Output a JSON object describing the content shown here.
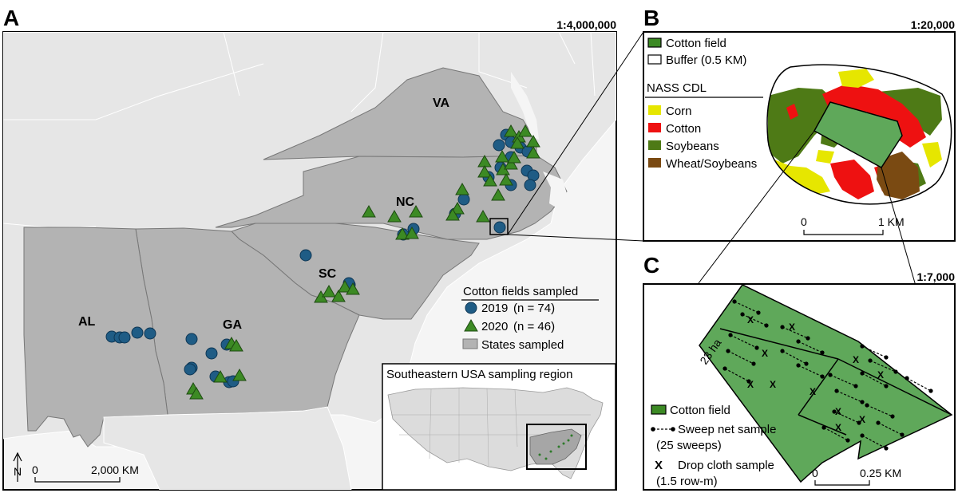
{
  "panels": {
    "a": {
      "letter": "A",
      "scale": "1:4,000,000",
      "states": [
        "VA",
        "NC",
        "SC",
        "GA",
        "AL"
      ],
      "legend": {
        "title": "Cotton fields sampled",
        "y2019": "2019",
        "n2019": "(n = 74)",
        "y2020": "2020",
        "n2020": "(n = 46)",
        "states": "States sampled"
      },
      "scalebar": {
        "start": "0",
        "end": "2,000 KM"
      },
      "north": "N",
      "inset_title": "Southeastern USA sampling region"
    },
    "b": {
      "letter": "B",
      "scale": "1:20,000",
      "legend": {
        "cotton_field": "Cotton field",
        "buffer": "Buffer (0.5 KM)",
        "nass_title": "NASS CDL",
        "classes": [
          "Corn",
          "Cotton",
          "Soybeans",
          "Wheat/Soybeans"
        ]
      },
      "scalebar": {
        "start": "0",
        "end": "1 KM"
      }
    },
    "c": {
      "letter": "C",
      "scale": "1:7,000",
      "area_label": "23 ha",
      "legend": {
        "cotton_field": "Cotton field",
        "sweep": "Sweep net sample",
        "sweep_sub": "(25 sweeps)",
        "drop_mark": "X",
        "drop": "Drop cloth sample",
        "drop_sub": "(1.5 row-m)"
      },
      "scalebar": {
        "start": "0",
        "end": "0.25 KM"
      }
    }
  },
  "colors": {
    "circle": "#1f5c85",
    "triangle": "#3c8a24",
    "state_fill": "#b3b3b3",
    "corn": "#e6e600",
    "cotton": "#ee1111",
    "soybeans": "#4e7a16",
    "wheat": "#7a4a12",
    "field": "#5fa85a"
  },
  "chart_data": [
    {
      "type": "scatter",
      "title": "Cotton fields sampled",
      "series": [
        {
          "name": "2019 (n = 74)",
          "values": [
            74
          ]
        },
        {
          "name": "2020 (n = 46)",
          "values": [
            46
          ]
        }
      ]
    }
  ]
}
